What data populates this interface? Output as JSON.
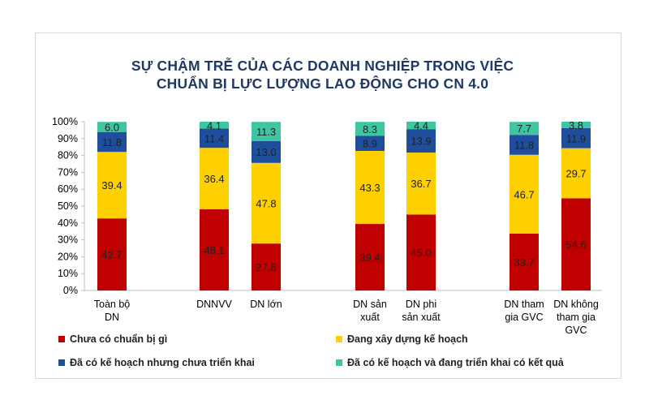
{
  "title_line1": "SỰ CHẬM TRỄ CỦA CÁC DOANH NGHIỆP TRONG VIỆC",
  "title_line2": "CHUẨN BỊ LỰC LƯỢNG LAO ĐỘNG CHO CN 4.0",
  "chart_data": {
    "type": "bar",
    "stacked": true,
    "title": "SỰ CHẬM TRỄ CỦA CÁC DOANH NGHIỆP TRONG VIỆC CHUẨN BỊ LỰC LƯỢNG LAO ĐỘNG CHO CN 4.0",
    "categories": [
      [
        "Toàn bộ",
        "DN"
      ],
      [
        "DNNVV"
      ],
      [
        "DN lớn"
      ],
      [
        "DN sản",
        "xuất"
      ],
      [
        "DN phi",
        "sản xuất"
      ],
      [
        "DN tham",
        "gia GVC"
      ],
      [
        "DN không",
        "tham gia",
        "GVC"
      ]
    ],
    "series": [
      {
        "name": "Chưa có chuẩn bị gì",
        "color": "#c00000",
        "values": [
          42.7,
          48.1,
          27.8,
          39.4,
          45.0,
          33.7,
          54.6
        ]
      },
      {
        "name": "Đang xây dựng kế hoạch",
        "color": "#ffd000",
        "values": [
          39.4,
          36.4,
          47.8,
          43.3,
          36.7,
          46.7,
          29.7
        ]
      },
      {
        "name": "Đã có kế hoạch nhưng chưa triển khai",
        "color": "#1f4e9c",
        "values": [
          11.8,
          11.4,
          13.0,
          8.9,
          13.9,
          11.8,
          11.9
        ]
      },
      {
        "name": "Đã có kế hoạch và đang triển khai có kết quả",
        "color": "#3fc6a0",
        "values": [
          6.0,
          4.1,
          11.3,
          8.3,
          4.4,
          7.7,
          3.8
        ]
      }
    ],
    "value_labels": [
      [
        "42.7",
        "48.1",
        "27.8",
        "39.4",
        "45.0",
        "33.7",
        "54.6"
      ],
      [
        "39.4",
        "36.4",
        "47.8",
        "43.3",
        "36.7",
        "46.7",
        "29.7"
      ],
      [
        "11.8",
        "11.4",
        "13.0",
        "8.9",
        "13.9",
        "11.8",
        "11.9"
      ],
      [
        "6.0",
        "4.1",
        "11.3",
        "8.3",
        "4.4",
        "7.7",
        "3.8"
      ]
    ],
    "y_ticks": [
      "0%",
      "10%",
      "20%",
      "30%",
      "40%",
      "50%",
      "60%",
      "70%",
      "80%",
      "90%",
      "100%"
    ],
    "ylim": [
      0,
      100
    ],
    "grid": false,
    "legend_position": "bottom"
  }
}
